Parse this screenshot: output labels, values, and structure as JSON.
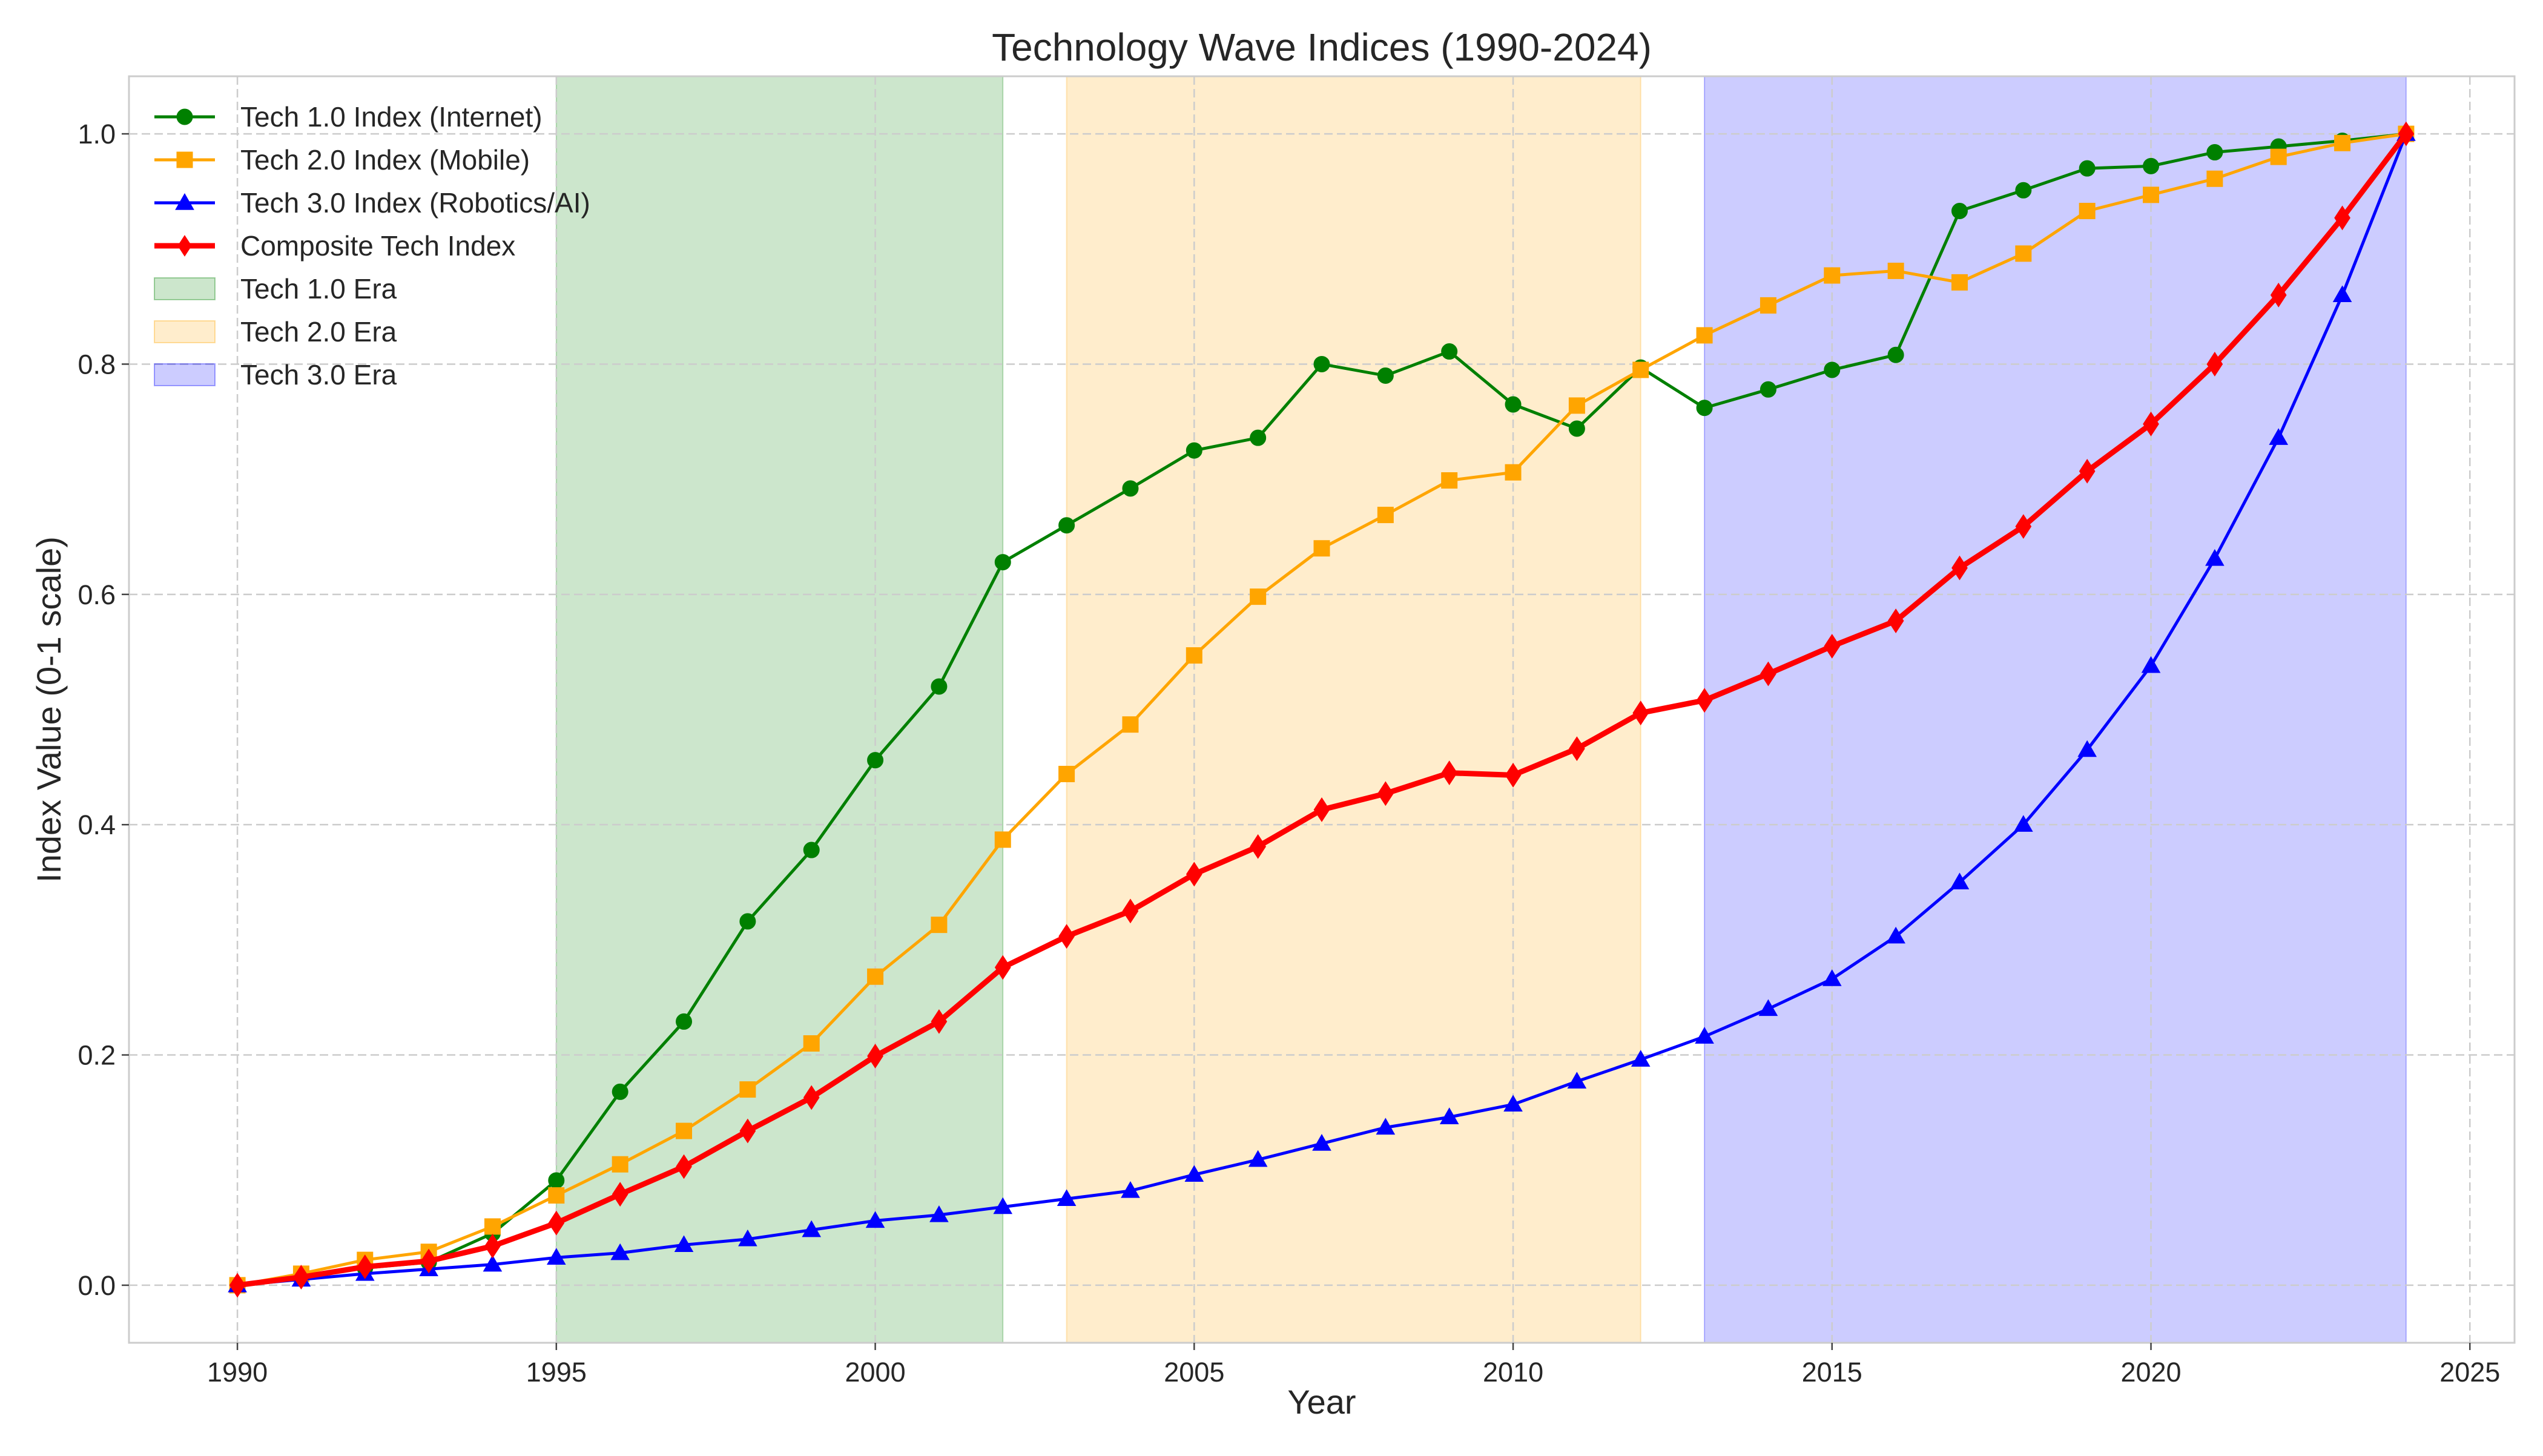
{
  "chart_data": {
    "type": "line",
    "title": "Technology Wave Indices (1990-2024)",
    "xlabel": "Year",
    "ylabel": "Index Value (0-1 scale)",
    "xlim": [
      1988.3,
      2025.7
    ],
    "ylim": [
      -0.05,
      1.05
    ],
    "grid": true,
    "legend_position": "top-left",
    "x_ticks": [
      1990,
      1995,
      2000,
      2005,
      2010,
      2015,
      2020,
      2025
    ],
    "x_tick_labels": [
      "1990",
      "1995",
      "2000",
      "2005",
      "2010",
      "2015",
      "2020",
      "2025"
    ],
    "y_ticks": [
      0.0,
      0.2,
      0.4,
      0.6,
      0.8,
      1.0
    ],
    "y_tick_labels": [
      "0.0",
      "0.2",
      "0.4",
      "0.6",
      "0.8",
      "1.0"
    ],
    "x": [
      1990,
      1991,
      1992,
      1993,
      1994,
      1995,
      1996,
      1997,
      1998,
      1999,
      2000,
      2001,
      2002,
      2003,
      2004,
      2005,
      2006,
      2007,
      2008,
      2009,
      2010,
      2011,
      2012,
      2013,
      2014,
      2015,
      2016,
      2017,
      2018,
      2019,
      2020,
      2021,
      2022,
      2023,
      2024
    ],
    "series": [
      {
        "name": "Tech 1.0 Index (Internet)",
        "color": "#008000",
        "marker": "circle",
        "linewidth": "normal",
        "values": [
          0.0,
          0.007,
          0.015,
          0.02,
          0.045,
          0.091,
          0.168,
          0.229,
          0.316,
          0.378,
          0.456,
          0.52,
          0.628,
          0.66,
          0.692,
          0.725,
          0.736,
          0.8,
          0.79,
          0.811,
          0.765,
          0.744,
          0.797,
          0.762,
          0.778,
          0.795,
          0.808,
          0.933,
          0.951,
          0.97,
          0.972,
          0.984,
          0.989,
          0.994,
          1.0
        ]
      },
      {
        "name": "Tech 2.0 Index (Mobile)",
        "color": "#ffa500",
        "marker": "square",
        "linewidth": "normal",
        "values": [
          0.0,
          0.01,
          0.022,
          0.029,
          0.051,
          0.078,
          0.105,
          0.134,
          0.17,
          0.21,
          0.268,
          0.313,
          0.387,
          0.444,
          0.487,
          0.547,
          0.598,
          0.64,
          0.669,
          0.699,
          0.706,
          0.764,
          0.795,
          0.825,
          0.851,
          0.877,
          0.881,
          0.871,
          0.896,
          0.933,
          0.947,
          0.961,
          0.98,
          0.992,
          1.0
        ]
      },
      {
        "name": "Tech 3.0 Index (Robotics/AI)",
        "color": "#0000ff",
        "marker": "triangle",
        "linewidth": "normal",
        "values": [
          0.0,
          0.005,
          0.01,
          0.014,
          0.018,
          0.024,
          0.028,
          0.035,
          0.04,
          0.048,
          0.056,
          0.061,
          0.068,
          0.075,
          0.082,
          0.096,
          0.109,
          0.123,
          0.137,
          0.146,
          0.157,
          0.177,
          0.196,
          0.216,
          0.24,
          0.266,
          0.303,
          0.35,
          0.4,
          0.465,
          0.538,
          0.631,
          0.736,
          0.86,
          1.0
        ]
      },
      {
        "name": "Composite Tech Index",
        "color": "#ff0000",
        "marker": "diamond",
        "linewidth": "thick",
        "values": [
          0.0,
          0.007,
          0.016,
          0.021,
          0.034,
          0.054,
          0.079,
          0.103,
          0.134,
          0.163,
          0.199,
          0.229,
          0.276,
          0.303,
          0.325,
          0.357,
          0.381,
          0.413,
          0.427,
          0.445,
          0.443,
          0.466,
          0.497,
          0.508,
          0.531,
          0.555,
          0.577,
          0.623,
          0.659,
          0.707,
          0.748,
          0.8,
          0.86,
          0.927,
          1.0
        ]
      }
    ],
    "eras": [
      {
        "name": "Tech 1.0 Era",
        "start": 1995,
        "end": 2002,
        "color": "#008000",
        "opacity": 0.2
      },
      {
        "name": "Tech 2.0 Era",
        "start": 2003,
        "end": 2012,
        "color": "#ffa500",
        "opacity": 0.2
      },
      {
        "name": "Tech 3.0 Era",
        "start": 2013,
        "end": 2024,
        "color": "#0000ff",
        "opacity": 0.2
      }
    ]
  }
}
